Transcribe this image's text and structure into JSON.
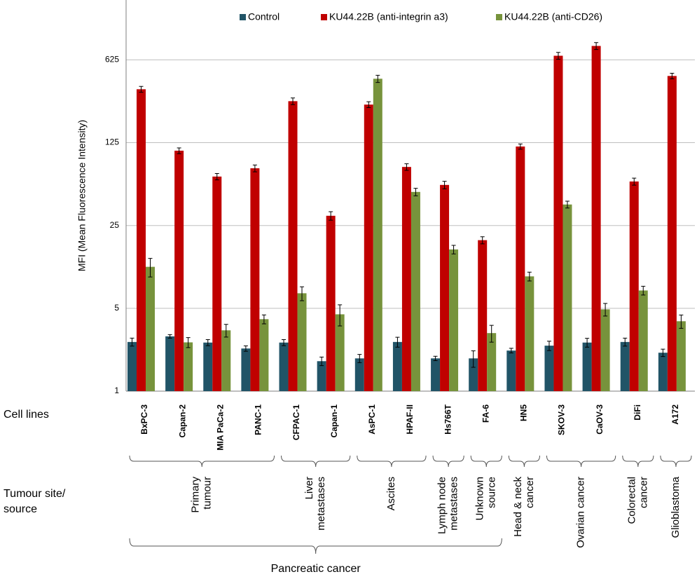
{
  "chart_data": {
    "type": "bar",
    "y_label": "MFI (Mean Fluorescence Intensity)",
    "categories": [
      "BxPC-3",
      "Capan-2",
      "MIA PaCa-2",
      "PANC-1",
      "CFPAC-1",
      "Capan-1",
      "AsPC-1",
      "HPAF-II",
      "Hs766T",
      "FA-6",
      "HN5",
      "SKOV-3",
      "CaOV-3",
      "DiFi",
      "A172"
    ],
    "series": [
      {
        "name": "Control",
        "color": "#215467",
        "values": [
          2.6,
          2.9,
          2.57,
          2.29,
          2.57,
          1.79,
          1.89,
          2.6,
          1.89,
          1.89,
          2.2,
          2.42,
          2.57,
          2.6,
          2.11
        ],
        "errors": [
          0.2,
          0.1,
          0.15,
          0.12,
          0.15,
          0.15,
          0.15,
          0.25,
          0.08,
          0.3,
          0.1,
          0.22,
          0.22,
          0.2,
          0.15
        ]
      },
      {
        "name": "KU44.22B (anti-integrin a3)",
        "color": "#c00000",
        "values": [
          353,
          107,
          64.7,
          76,
          280,
          30.2,
          262,
          78,
          55,
          18.8,
          116,
          677,
          819,
          58.8,
          457
        ],
        "errors": [
          20,
          6,
          4,
          5,
          18,
          2.5,
          15,
          5,
          4,
          1.3,
          6,
          45,
          55,
          4,
          25
        ]
      },
      {
        "name": "KU44.22B (anti-CD26)",
        "color": "#77933c",
        "values": [
          11.2,
          2.58,
          3.26,
          4.05,
          6.7,
          4.45,
          433,
          48,
          15.7,
          3.09,
          9.3,
          37.6,
          4.9,
          7.07,
          3.89
        ],
        "errors": [
          2,
          0.25,
          0.4,
          0.35,
          0.9,
          0.9,
          30,
          3.5,
          1.3,
          0.5,
          0.8,
          2.5,
          0.6,
          0.6,
          0.5
        ]
      }
    ],
    "yscale": "log",
    "ylim": [
      1,
      2000
    ],
    "yticks": [
      1,
      5,
      25,
      125,
      625
    ],
    "grid": true,
    "legend": "top",
    "cell_lines_label": "Cell lines",
    "tumour_site_label": [
      "Tumour site/",
      "source"
    ],
    "groups": [
      {
        "lines": [
          "Primary",
          "tumour"
        ]
      },
      {
        "lines": [
          "Liver",
          "metastases"
        ]
      },
      {
        "lines": [
          "Ascites"
        ]
      },
      {
        "lines": [
          "Lymph node",
          "metastases"
        ]
      },
      {
        "lines": [
          "Unknown",
          "source"
        ]
      },
      {
        "lines": [
          "Head & neck",
          "cancer"
        ]
      },
      {
        "lines": [
          "Ovarian cancer"
        ]
      },
      {
        "lines": [
          "Colorectal",
          "cancer"
        ]
      },
      {
        "lines": [
          "Glioblastoma"
        ]
      }
    ],
    "super_group": "Pancreatic cancer"
  }
}
